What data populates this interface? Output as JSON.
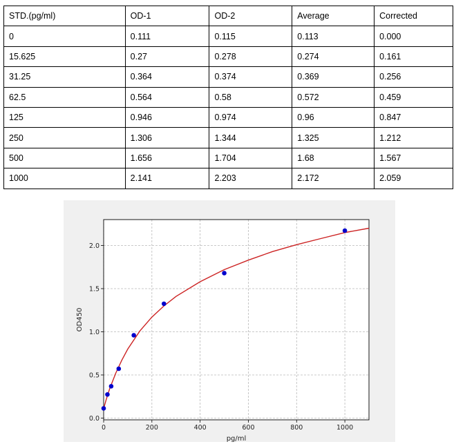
{
  "table": {
    "headers": [
      "STD.(pg/ml)",
      "OD-1",
      "OD-2",
      "Average",
      "Corrected"
    ],
    "rows": [
      [
        "0",
        "0.111",
        "0.115",
        "0.113",
        "0.000"
      ],
      [
        "15.625",
        "0.27",
        "0.278",
        "0.274",
        "0.161"
      ],
      [
        "31.25",
        "0.364",
        "0.374",
        "0.369",
        "0.256"
      ],
      [
        "62.5",
        "0.564",
        "0.58",
        "0.572",
        "0.459"
      ],
      [
        "125",
        "0.946",
        "0.974",
        "0.96",
        "0.847"
      ],
      [
        "250",
        "1.306",
        "1.344",
        "1.325",
        "1.212"
      ],
      [
        "500",
        "1.656",
        "1.704",
        "1.68",
        "1.567"
      ],
      [
        "1000",
        "2.141",
        "2.203",
        "2.172",
        "2.059"
      ]
    ]
  },
  "chart_data": {
    "type": "scatter",
    "xlabel": "pg/ml",
    "ylabel": "OD450",
    "xlim": [
      0,
      1100
    ],
    "ylim": [
      -0.02,
      2.3
    ],
    "xticks": [
      0,
      200,
      400,
      600,
      800,
      1000
    ],
    "yticks": [
      0.0,
      0.5,
      1.0,
      1.5,
      2.0
    ],
    "ytick_labels": [
      "0.0",
      "0.5",
      "1.0",
      "1.5",
      "2.0"
    ],
    "grid": true,
    "series": [
      {
        "type": "scatter",
        "color": "#0000cc",
        "x": [
          0,
          15.625,
          31.25,
          62.5,
          125,
          250,
          500,
          1000
        ],
        "y": [
          0.113,
          0.274,
          0.369,
          0.572,
          0.96,
          1.325,
          1.68,
          2.172
        ]
      },
      {
        "type": "line",
        "color": "#cc2222",
        "x": [
          0,
          10,
          25,
          50,
          75,
          100,
          150,
          200,
          250,
          300,
          400,
          500,
          600,
          700,
          800,
          900,
          1000,
          1100
        ],
        "y": [
          0.11,
          0.21,
          0.34,
          0.52,
          0.67,
          0.8,
          1.01,
          1.17,
          1.3,
          1.41,
          1.58,
          1.72,
          1.83,
          1.93,
          2.01,
          2.08,
          2.15,
          2.2
        ]
      }
    ]
  }
}
